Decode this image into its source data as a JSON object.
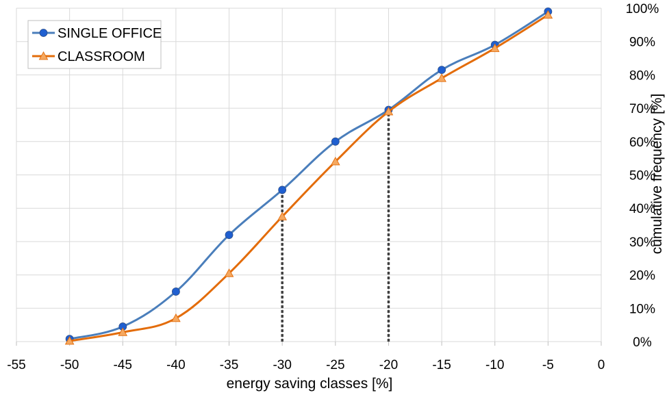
{
  "chart_data": {
    "type": "line",
    "xlabel": "energy saving classes  [%]",
    "ylabel": "cumulative frequency  [%]",
    "xlim": [
      -55,
      0
    ],
    "xticks": [
      -55,
      -50,
      -45,
      -40,
      -35,
      -30,
      -25,
      -20,
      -15,
      -10,
      -5,
      0
    ],
    "ylim": [
      0,
      100
    ],
    "yticks": [
      0,
      10,
      20,
      30,
      40,
      50,
      60,
      70,
      80,
      90,
      100
    ],
    "ytick_suffix": "%",
    "y_axis_side": "right",
    "grid": true,
    "legend_position": "top-left",
    "series": [
      {
        "name": "SINGLE OFFICE",
        "color": "#4a7ebb",
        "marker": "circle",
        "marker_color": "#1f5fd0",
        "x": [
          -50,
          -45,
          -40,
          -35,
          -30,
          -25,
          -20,
          -15,
          -10,
          -5
        ],
        "values": [
          0.8,
          4.5,
          15,
          32,
          45.5,
          60,
          69.5,
          81.5,
          89,
          99
        ]
      },
      {
        "name": "CLASSROOM",
        "color": "#e36c0a",
        "marker": "triangle",
        "marker_color": "#f5a860",
        "x": [
          -50,
          -45,
          -40,
          -35,
          -30,
          -25,
          -20,
          -15,
          -10,
          -5
        ],
        "values": [
          0.2,
          2.8,
          7,
          20.5,
          37.5,
          54,
          69,
          79,
          88,
          98
        ]
      }
    ],
    "annotations": [
      {
        "type": "dotted-vertical-line",
        "x": -30,
        "from_y": 0,
        "to_y": 45.5,
        "color": "#404040"
      },
      {
        "type": "dotted-vertical-line",
        "x": -20,
        "from_y": 0,
        "to_y": 69.5,
        "color": "#404040"
      }
    ]
  }
}
